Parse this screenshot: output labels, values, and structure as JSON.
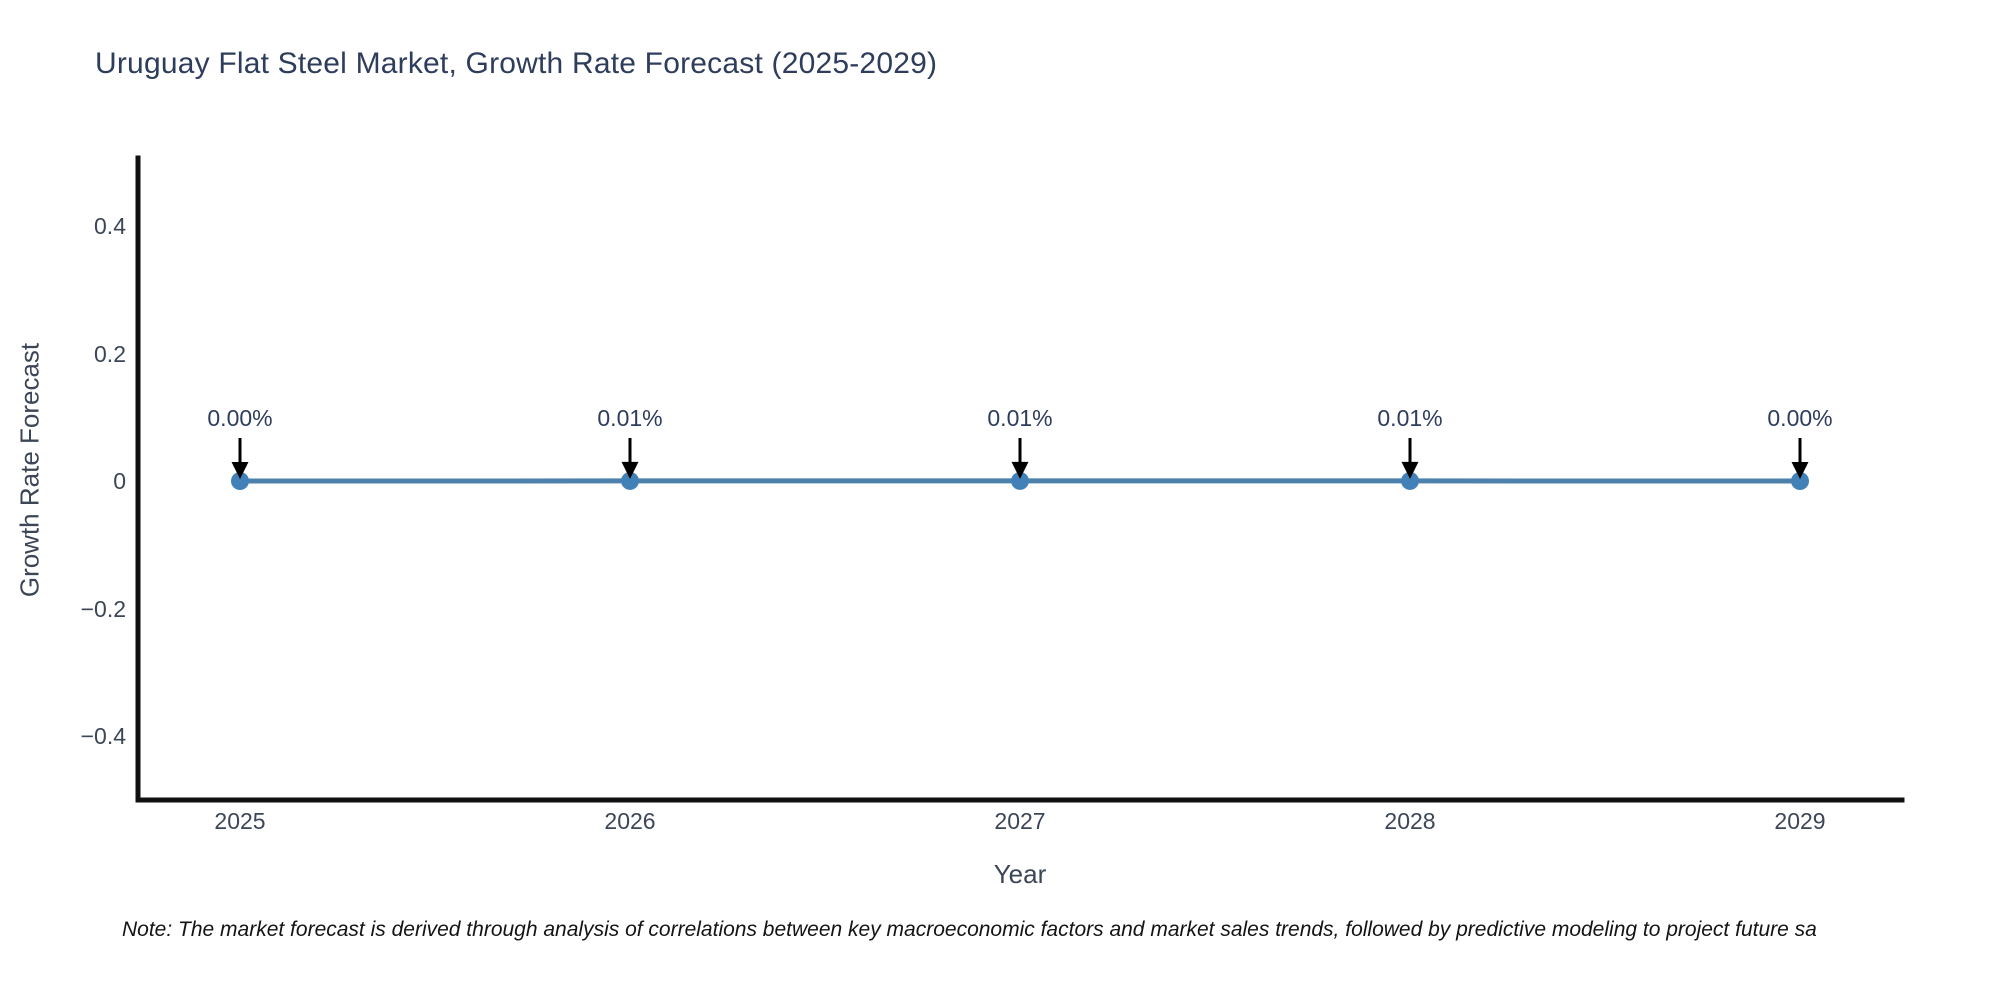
{
  "chart_data": {
    "type": "line",
    "title": "Uruguay Flat Steel Market, Growth Rate Forecast (2025-2029)",
    "xlabel": "Year",
    "ylabel": "Growth Rate Forecast",
    "x": [
      2025,
      2026,
      2027,
      2028,
      2029
    ],
    "x_tick_labels": [
      "2025",
      "2026",
      "2027",
      "2028",
      "2029"
    ],
    "series": [
      {
        "name": "Growth Rate Forecast",
        "values": [
          0.0,
          0.0001,
          0.0001,
          0.0001,
          0.0
        ],
        "point_labels": [
          "0.00%",
          "0.01%",
          "0.01%",
          "0.01%",
          "0.00%"
        ]
      }
    ],
    "y_ticks": [
      {
        "label": "0.4",
        "value": 0.4
      },
      {
        "label": "0.2",
        "value": 0.2
      },
      {
        "label": "0",
        "value": 0
      },
      {
        "label": "−0.2",
        "value": -0.2
      },
      {
        "label": "−0.4",
        "value": -0.4
      }
    ],
    "ylim": [
      -0.5,
      0.51
    ],
    "xlim": [
      2024.74,
      2029.26
    ],
    "grid": false,
    "legend": "none",
    "colors": {
      "line": "#4d80ab",
      "marker": "#4181b8",
      "axis": "#111111",
      "annotation_arrow": "#000000",
      "title_text": "#2e3d5c",
      "tick_text": "#3c4657",
      "note_text": "#141414",
      "background": "#ffffff"
    }
  },
  "note": "Note: The market forecast is derived through analysis of correlations between key macroeconomic factors and market sales trends, followed by predictive modeling to project future sa"
}
